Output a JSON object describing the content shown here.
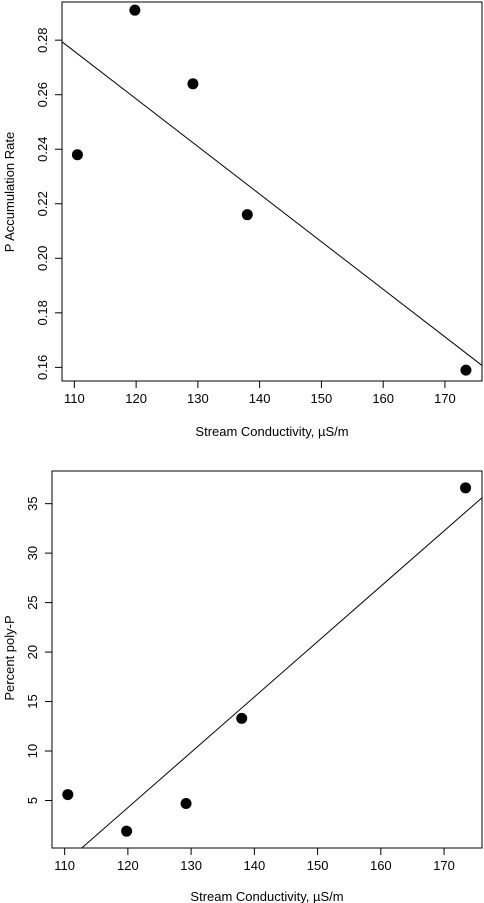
{
  "chart_data": [
    {
      "type": "scatter",
      "xlabel": "Stream Conductivity, µS/m",
      "ylabel": "P Accumulation Rate",
      "xlim": [
        108,
        176
      ],
      "ylim": [
        0.155,
        0.294
      ],
      "xticks": [
        110,
        120,
        130,
        140,
        150,
        160,
        170
      ],
      "yticks": [
        0.16,
        0.18,
        0.2,
        0.22,
        0.24,
        0.26,
        0.28
      ],
      "ytick_labels": [
        "0.16",
        "0.18",
        "0.20",
        "0.22",
        "0.24",
        "0.26",
        "0.28"
      ],
      "points": [
        {
          "x": 110.5,
          "y": 0.238
        },
        {
          "x": 119.8,
          "y": 0.291
        },
        {
          "x": 129.2,
          "y": 0.264
        },
        {
          "x": 138.0,
          "y": 0.216
        },
        {
          "x": 173.4,
          "y": 0.159
        }
      ],
      "fit_line": {
        "x": [
          108,
          176
        ],
        "y": [
          0.2794,
          0.1607
        ]
      },
      "grid": false
    },
    {
      "type": "scatter",
      "xlabel": "Stream Conductivity, µS/m",
      "ylabel": "Percent poly-P",
      "xlim": [
        108,
        176
      ],
      "ylim": [
        0.2,
        38.3
      ],
      "xticks": [
        110,
        120,
        130,
        140,
        150,
        160,
        170
      ],
      "yticks": [
        5,
        10,
        15,
        20,
        25,
        30,
        35
      ],
      "ytick_labels": [
        "5",
        "10",
        "15",
        "20",
        "25",
        "30",
        "35"
      ],
      "points": [
        {
          "x": 110.5,
          "y": 5.6
        },
        {
          "x": 119.8,
          "y": 1.9
        },
        {
          "x": 129.2,
          "y": 4.7
        },
        {
          "x": 138.0,
          "y": 13.3
        },
        {
          "x": 173.4,
          "y": 36.6
        }
      ],
      "fit_line": {
        "x": [
          112.7,
          176
        ],
        "y": [
          0.2,
          35.6
        ]
      },
      "grid": false
    }
  ]
}
